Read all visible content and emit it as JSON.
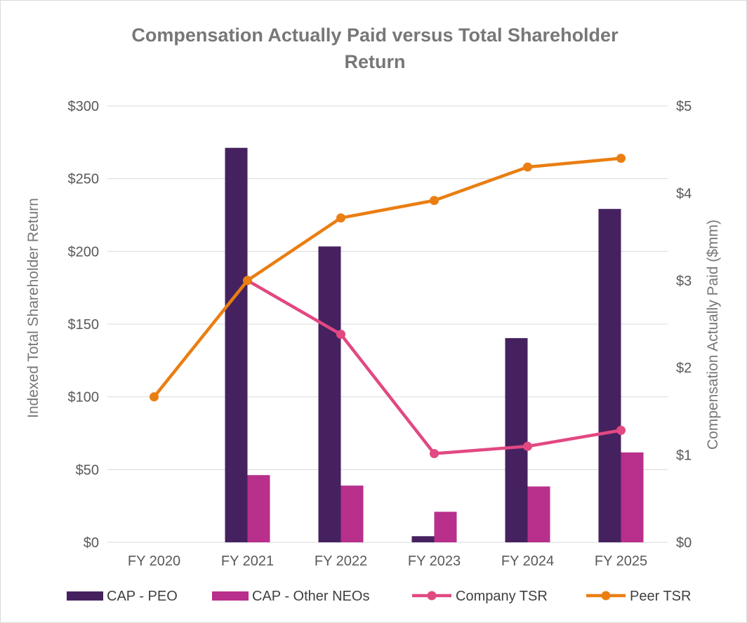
{
  "chart_data": {
    "type": "bar",
    "title_lines": [
      "Compensation Actually Paid versus Total Shareholder",
      "Return"
    ],
    "categories": [
      "FY 2020",
      "FY 2021",
      "FY 2022",
      "FY 2023",
      "FY 2024",
      "FY 2025"
    ],
    "y_left": {
      "label": "Indexed Total Shareholder Return",
      "range": [
        0,
        300
      ],
      "ticks": [
        0,
        50,
        100,
        150,
        200,
        250,
        300
      ],
      "tick_labels": [
        "$0",
        "$50",
        "$100",
        "$150",
        "$200",
        "$250",
        "$300"
      ]
    },
    "y_right": {
      "label": "Compensation Actually Paid ($mm)",
      "range": [
        0,
        5
      ],
      "ticks": [
        0,
        1,
        2,
        3,
        4,
        5
      ],
      "tick_labels": [
        "$0",
        "$1",
        "$2",
        "$3",
        "$4",
        "$5"
      ]
    },
    "grid": true,
    "legend_position": "bottom",
    "bar_series": [
      {
        "name": "CAP - PEO",
        "axis": "right",
        "color": "#45225f",
        "values": [
          null,
          4.52,
          3.39,
          0.07,
          2.34,
          3.82
        ]
      },
      {
        "name": "CAP - Other NEOs",
        "axis": "right",
        "color": "#b82f8c",
        "values": [
          null,
          0.77,
          0.65,
          0.35,
          0.64,
          1.03
        ]
      }
    ],
    "line_series": [
      {
        "name": "Company TSR",
        "axis": "left",
        "color": "#e24882",
        "values": [
          null,
          180,
          143,
          61,
          66,
          77
        ]
      },
      {
        "name": "Peer TSR",
        "axis": "left",
        "color": "#ea7e12",
        "values": [
          100,
          180,
          223,
          235,
          258,
          264
        ]
      }
    ]
  }
}
